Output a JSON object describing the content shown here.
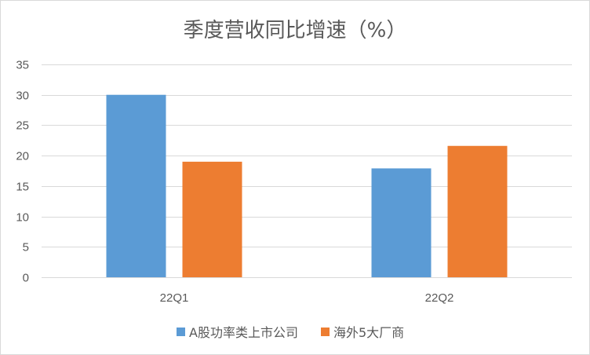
{
  "chart_data": {
    "type": "bar",
    "title": "季度营收同比增速（%）",
    "categories": [
      "22Q1",
      "22Q2"
    ],
    "series": [
      {
        "name": "A股功率类上市公司",
        "values": [
          30.0,
          17.9
        ],
        "color": "#5b9bd5"
      },
      {
        "name": "海外5大厂商",
        "values": [
          19.0,
          21.6
        ],
        "color": "#ed7d31"
      }
    ],
    "ylim": [
      0,
      35
    ],
    "yticks": [
      0,
      5,
      10,
      15,
      20,
      25,
      30,
      35
    ],
    "grid": true,
    "legend": "bottom"
  }
}
